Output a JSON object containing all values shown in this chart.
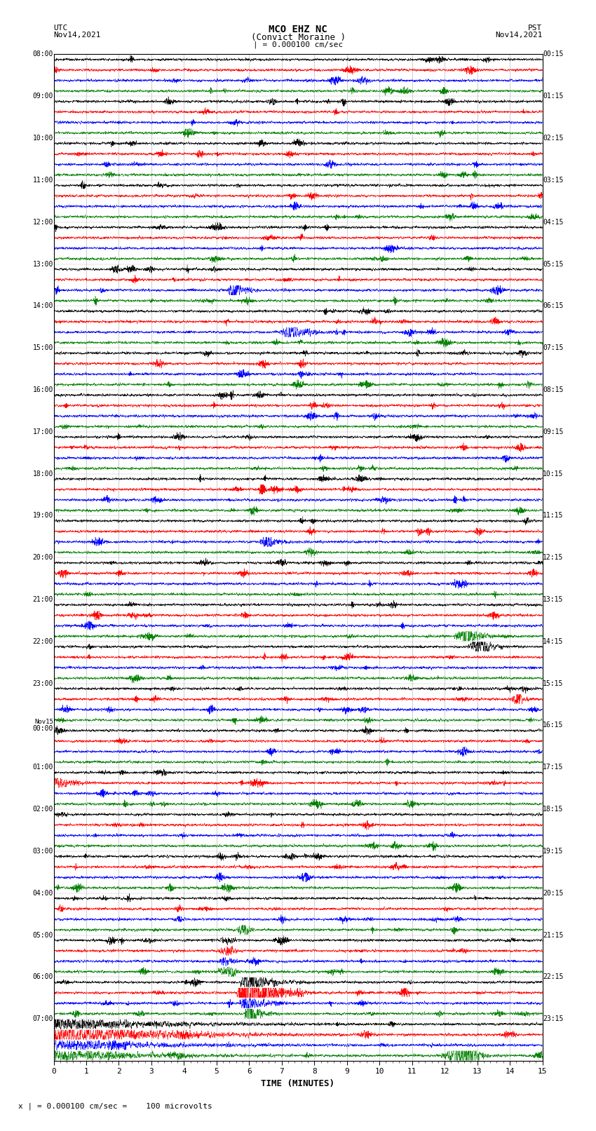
{
  "title_line1": "MCO EHZ NC",
  "title_line2": "(Convict Moraine )",
  "scale_label": "| = 0.000100 cm/sec",
  "utc_label": "UTC\nNov14,2021",
  "pst_label": "PST\nNov14,2021",
  "xlabel": "TIME (MINUTES)",
  "footer": "x | = 0.000100 cm/sec =    100 microvolts",
  "left_times": [
    "08:00",
    "09:00",
    "10:00",
    "11:00",
    "12:00",
    "13:00",
    "14:00",
    "15:00",
    "16:00",
    "17:00",
    "18:00",
    "19:00",
    "20:00",
    "21:00",
    "22:00",
    "23:00",
    "Nov15\n00:00",
    "01:00",
    "02:00",
    "03:00",
    "04:00",
    "05:00",
    "06:00",
    "07:00"
  ],
  "right_times": [
    "00:15",
    "01:15",
    "02:15",
    "03:15",
    "04:15",
    "05:15",
    "06:15",
    "07:15",
    "08:15",
    "09:15",
    "10:15",
    "11:15",
    "12:15",
    "13:15",
    "14:15",
    "15:15",
    "16:15",
    "17:15",
    "18:15",
    "19:15",
    "20:15",
    "21:15",
    "22:15",
    "23:15"
  ],
  "num_rows": 24,
  "traces_per_row": 4,
  "colors": [
    "black",
    "red",
    "blue",
    "green"
  ],
  "bg_color": "white",
  "xmin": 0,
  "xmax": 15,
  "xticks": [
    0,
    1,
    2,
    3,
    4,
    5,
    6,
    7,
    8,
    9,
    10,
    11,
    12,
    13,
    14,
    15
  ],
  "figsize": [
    8.5,
    16.13
  ],
  "dpi": 100
}
